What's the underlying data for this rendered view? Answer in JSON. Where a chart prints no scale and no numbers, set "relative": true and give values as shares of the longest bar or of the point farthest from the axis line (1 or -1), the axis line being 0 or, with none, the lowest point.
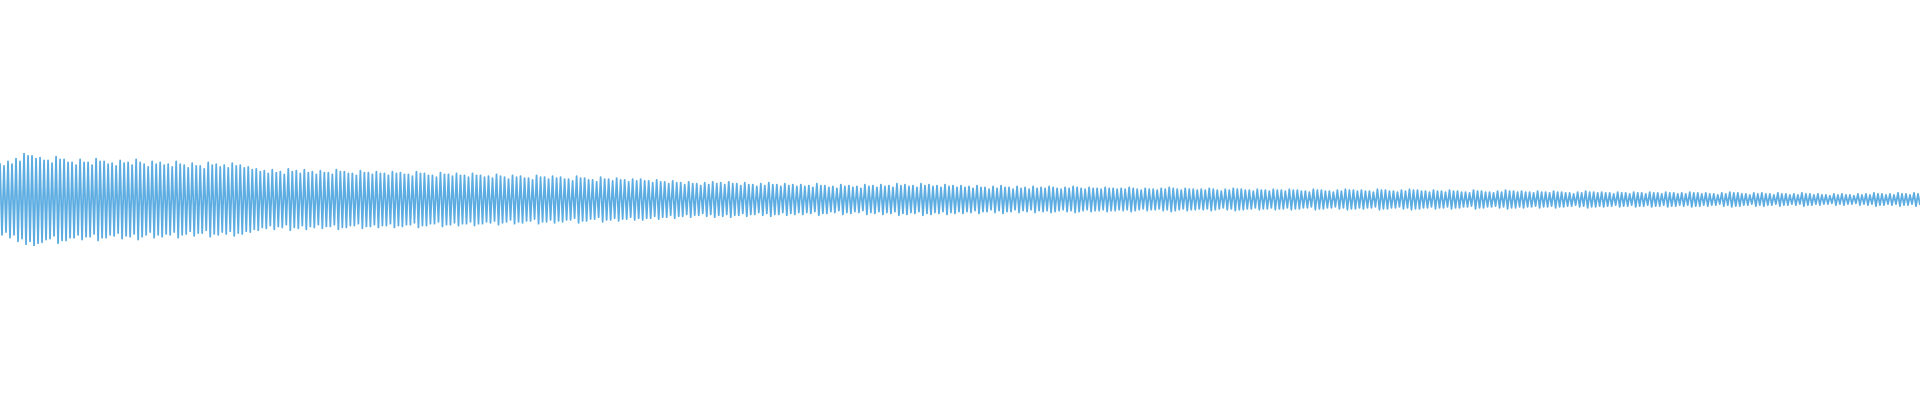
{
  "chart_data": {
    "type": "line",
    "relative": true,
    "marker": "none",
    "color": "#5dade2",
    "categories": [
      null,
      null,
      null,
      null,
      null,
      null,
      null,
      null,
      null,
      null,
      null,
      null,
      null,
      null,
      null,
      null,
      null,
      null,
      null,
      null,
      null,
      null,
      null,
      null,
      null,
      null,
      null,
      null,
      null,
      null,
      null,
      null,
      null,
      null,
      null,
      null,
      null,
      null,
      null,
      null,
      null,
      null,
      null,
      null,
      null,
      null,
      null,
      null,
      null,
      null,
      null,
      null,
      null,
      null,
      null,
      null,
      null,
      null,
      null,
      null,
      null,
      null,
      null,
      null,
      null,
      null,
      null,
      null,
      null,
      null,
      null,
      null,
      null,
      null,
      null,
      null,
      null,
      null,
      null,
      null,
      null,
      null,
      null,
      null,
      null,
      null,
      null,
      null,
      null,
      null,
      null,
      null,
      null,
      null,
      null,
      null,
      null,
      null,
      null,
      null,
      null,
      null,
      null,
      null,
      null,
      null,
      null,
      null,
      null,
      null,
      null,
      null,
      null,
      null,
      null,
      null,
      null,
      null,
      null,
      null,
      null,
      null,
      null,
      null,
      null,
      null,
      null,
      null,
      null,
      null,
      null,
      null,
      null,
      null,
      null,
      null,
      null,
      null,
      null,
      null,
      null,
      null,
      null,
      null,
      null,
      null,
      null,
      null,
      null,
      null,
      null,
      null,
      null,
      null,
      null,
      null,
      null,
      null,
      null,
      null,
      null,
      null,
      null,
      null,
      null,
      null,
      null,
      null,
      null,
      null,
      null,
      null,
      null,
      null,
      null,
      null,
      null,
      null,
      null,
      null,
      null,
      null,
      null,
      null,
      null,
      null,
      null,
      null,
      null,
      null,
      null,
      null,
      null,
      null,
      null,
      null,
      null,
      null,
      null,
      null,
      null,
      null,
      null,
      null,
      null,
      null,
      null,
      null,
      null,
      null,
      null,
      null,
      null,
      null,
      null,
      null,
      null,
      null,
      null,
      null,
      null,
      null,
      null,
      null,
      null,
      null,
      null,
      null,
      null,
      null,
      null,
      null,
      null,
      null,
      null,
      null,
      null,
      null,
      null,
      null,
      null,
      null,
      null,
      null,
      null,
      null,
      null,
      null,
      null,
      null,
      null,
      null,
      null,
      null,
      null,
      null,
      null,
      null,
      null,
      null,
      null,
      null,
      null,
      null,
      null,
      null,
      null,
      null,
      null,
      null,
      null,
      null,
      null,
      null,
      null,
      null,
      null,
      null,
      null,
      null,
      null,
      null,
      null,
      null,
      null,
      null,
      null,
      null,
      null,
      null,
      null,
      null,
      null,
      null,
      null,
      null,
      null,
      null,
      null,
      null,
      null,
      null,
      null,
      null,
      null,
      null,
      null,
      null,
      null,
      null,
      null,
      null,
      null,
      null,
      null,
      null,
      null,
      null,
      null,
      null,
      null,
      null,
      null,
      null,
      null,
      null,
      null,
      null,
      null,
      null,
      null,
      null,
      null,
      null,
      null,
      null,
      null,
      null,
      null,
      null,
      null,
      null,
      null,
      null,
      null,
      null,
      null,
      null,
      null,
      null,
      null,
      null,
      null,
      null,
      null,
      null,
      null,
      null,
      null,
      null,
      null,
      null,
      null,
      null,
      null,
      null,
      null,
      null,
      null,
      null,
      null,
      null,
      null,
      null,
      null,
      null,
      null,
      null,
      null,
      null,
      null,
      null,
      null,
      null,
      null,
      null,
      null,
      null,
      null,
      null,
      null,
      null,
      null,
      null,
      null,
      null,
      null,
      null,
      null,
      null,
      null,
      null,
      null,
      null,
      null,
      null,
      null,
      null,
      null,
      null,
      null,
      null,
      null,
      null,
      null,
      null,
      null,
      null,
      null,
      null,
      null,
      null,
      null,
      null,
      null,
      null,
      null,
      null,
      null,
      null,
      null,
      null,
      null,
      null,
      null,
      null,
      null,
      null,
      null,
      null,
      null,
      null,
      null,
      null,
      null,
      null,
      null,
      null,
      null,
      null,
      null,
      null,
      null,
      null,
      null,
      null,
      null,
      null,
      null,
      null,
      null,
      null,
      null,
      null,
      null,
      null,
      null,
      null,
      null,
      null,
      null,
      null,
      null,
      null,
      null,
      null,
      null,
      null,
      null,
      null,
      null,
      null,
      null,
      null,
      null,
      null,
      null,
      null,
      null,
      null,
      null,
      null,
      null,
      null,
      null,
      null,
      null,
      null,
      null,
      null,
      null,
      null,
      null,
      null,
      null,
      null,
      null,
      null,
      null,
      null,
      null,
      null,
      null,
      null,
      null,
      null,
      null,
      null,
      null,
      null,
      null,
      null,
      null,
      null,
      null,
      null,
      null,
      null,
      null,
      null,
      null,
      null,
      null,
      null,
      null,
      null,
      null,
      null,
      null,
      null,
      null,
      null,
      null,
      null,
      null,
      null,
      null,
      null,
      null,
      null,
      null,
      null,
      null,
      null,
      null,
      null,
      null,
      null,
      null,
      null,
      null,
      null,
      null,
      null,
      null,
      null,
      null,
      null,
      null,
      null,
      null,
      null,
      null,
      null,
      null,
      null,
      null,
      null,
      null,
      null,
      null,
      null,
      null,
      null,
      null,
      null,
      null,
      null,
      null,
      null,
      null,
      null,
      null,
      null,
      null,
      null,
      null,
      null,
      null,
      null,
      null,
      null,
      null,
      null,
      null,
      null,
      null,
      null,
      null,
      null,
      null,
      null,
      null,
      null,
      null,
      null,
      null,
      null,
      null,
      null,
      null,
      null,
      null,
      null,
      null,
      null,
      null,
      null,
      null,
      null,
      null,
      null,
      null,
      null,
      null,
      null,
      null,
      null,
      null,
      null,
      null,
      null,
      null,
      null,
      null,
      null,
      null,
      null,
      null,
      null,
      null,
      null,
      null,
      null,
      null,
      null,
      null,
      null,
      null,
      null,
      null,
      null,
      null,
      null,
      null,
      null,
      null,
      null,
      null,
      null,
      null,
      null,
      null,
      null,
      null,
      null,
      null,
      null,
      null,
      null,
      null,
      null,
      null,
      null,
      null,
      null,
      null,
      null,
      null,
      null,
      null,
      null,
      null,
      null,
      null,
      null,
      null,
      null,
      null,
      null,
      null,
      null,
      null,
      null,
      null,
      null,
      null,
      null,
      null,
      null,
      null,
      null,
      null,
      null,
      null,
      null,
      null,
      null,
      null,
      null,
      null,
      null,
      null,
      null,
      null,
      null,
      null,
      null,
      null,
      null,
      null,
      null,
      null,
      null,
      null,
      null,
      null,
      null,
      null,
      null,
      null,
      null,
      null,
      null,
      null,
      null,
      null,
      null,
      null,
      null,
      null,
      null,
      null,
      null,
      null,
      null,
      null,
      null,
      null,
      null,
      null,
      null,
      null,
      null,
      null,
      null,
      null,
      null,
      null,
      null,
      null,
      null,
      null,
      null,
      null,
      null,
      null,
      null,
      null,
      null,
      null,
      null,
      null,
      null,
      null,
      null,
      null,
      null,
      null,
      null,
      null,
      null,
      null,
      null,
      null,
      null,
      null,
      null,
      null,
      null,
      null,
      null,
      null,
      null,
      null,
      null,
      null,
      null,
      null,
      null,
      null,
      null,
      null,
      null,
      null,
      null,
      null,
      null,
      null,
      null,
      null,
      null,
      null,
      null,
      null,
      null,
      null,
      null,
      null,
      null,
      null,
      null,
      null,
      null,
      null,
      null,
      null,
      null,
      null,
      null,
      null,
      null,
      null,
      null,
      null,
      null,
      null,
      null,
      null,
      null,
      null,
      null,
      null,
      null,
      null,
      null,
      null,
      null,
      null,
      null,
      null,
      null,
      null,
      null,
      null,
      null,
      null,
      null,
      null,
      null,
      null,
      null,
      null,
      null,
      null,
      null,
      null,
      null,
      null,
      null,
      null,
      null,
      null,
      null,
      null,
      null,
      null,
      null,
      null,
      null,
      null,
      null,
      null,
      null,
      null,
      null,
      null,
      null,
      null,
      null,
      null,
      null,
      null,
      null,
      null,
      null,
      null,
      null,
      null,
      null,
      null,
      null,
      null,
      null,
      null,
      null,
      null,
      null,
      null,
      null,
      null,
      null,
      null,
      null,
      null,
      null,
      null,
      null,
      null,
      null,
      null,
      null,
      null,
      null,
      null,
      null,
      null,
      null,
      null,
      null,
      null,
      null,
      null,
      null,
      null,
      null,
      null,
      null,
      null,
      null,
      null,
      null,
      null,
      null,
      null,
      null,
      null,
      null,
      null,
      null
    ],
    "values": [
      0.89,
      0.12,
      0.86,
      0.15,
      0.91,
      0.09,
      0.88,
      0.12,
      0.94,
      0.05,
      0.91,
      0.08,
      1.0,
      0.02,
      0.97,
      0.05,
      0.97,
      0.0,
      0.94,
      0.03,
      0.95,
      0.04,
      0.92,
      0.07,
      0.92,
      0.08,
      0.89,
      0.11,
      0.96,
      0.03,
      0.93,
      0.06,
      0.93,
      0.06,
      0.9,
      0.09,
      0.9,
      0.09,
      0.87,
      0.12,
      0.93,
      0.07,
      0.9,
      0.1,
      0.9,
      0.1,
      0.87,
      0.13,
      0.94,
      0.06,
      0.91,
      0.09,
      0.91,
      0.09,
      0.88,
      0.12,
      0.89,
      0.11,
      0.86,
      0.14,
      0.92,
      0.08,
      0.89,
      0.11,
      0.9,
      0.1,
      0.87,
      0.13,
      0.93,
      0.07,
      0.9,
      0.1,
      0.88,
      0.12,
      0.85,
      0.15,
      0.91,
      0.09,
      0.88,
      0.12,
      0.9,
      0.1,
      0.87,
      0.13,
      0.88,
      0.12,
      0.85,
      0.15,
      0.91,
      0.09,
      0.88,
      0.12,
      0.87,
      0.13,
      0.84,
      0.16,
      0.89,
      0.11,
      0.86,
      0.14,
      0.86,
      0.14,
      0.83,
      0.17,
      0.9,
      0.1,
      0.87,
      0.13,
      0.88,
      0.12,
      0.85,
      0.15,
      0.87,
      0.13,
      0.84,
      0.16,
      0.89,
      0.11,
      0.86,
      0.14,
      0.87,
      0.13,
      0.84,
      0.16,
      0.85,
      0.15,
      0.82,
      0.18,
      0.83,
      0.17,
      0.8,
      0.2,
      0.81,
      0.19,
      0.78,
      0.22,
      0.82,
      0.18,
      0.79,
      0.21,
      0.8,
      0.2,
      0.77,
      0.23,
      0.83,
      0.17,
      0.8,
      0.2,
      0.81,
      0.19,
      0.78,
      0.22,
      0.82,
      0.18,
      0.79,
      0.21,
      0.8,
      0.2,
      0.77,
      0.23,
      0.81,
      0.19,
      0.79,
      0.21,
      0.79,
      0.21,
      0.77,
      0.23,
      0.82,
      0.18,
      0.8,
      0.2,
      0.8,
      0.2,
      0.78,
      0.22,
      0.78,
      0.22,
      0.76,
      0.24,
      0.81,
      0.19,
      0.79,
      0.21,
      0.79,
      0.21,
      0.77,
      0.23,
      0.8,
      0.2,
      0.78,
      0.22,
      0.78,
      0.22,
      0.76,
      0.24,
      0.8,
      0.2,
      0.78,
      0.22,
      0.79,
      0.21,
      0.77,
      0.23,
      0.77,
      0.23,
      0.75,
      0.25,
      0.8,
      0.2,
      0.78,
      0.22,
      0.78,
      0.22,
      0.76,
      0.24,
      0.76,
      0.24,
      0.74,
      0.26,
      0.79,
      0.21,
      0.77,
      0.23,
      0.77,
      0.23,
      0.75,
      0.25,
      0.78,
      0.22,
      0.76,
      0.24,
      0.76,
      0.24,
      0.74,
      0.26,
      0.78,
      0.22,
      0.76,
      0.24,
      0.76,
      0.24,
      0.74,
      0.26,
      0.75,
      0.25,
      0.73,
      0.27,
      0.77,
      0.23,
      0.75,
      0.25,
      0.74,
      0.26,
      0.72,
      0.28,
      0.76,
      0.24,
      0.74,
      0.26,
      0.75,
      0.25,
      0.73,
      0.27,
      0.73,
      0.27,
      0.71,
      0.29,
      0.76,
      0.24,
      0.74,
      0.26,
      0.74,
      0.26,
      0.72,
      0.28,
      0.75,
      0.25,
      0.73,
      0.27,
      0.74,
      0.26,
      0.72,
      0.28,
      0.72,
      0.28,
      0.7,
      0.3,
      0.75,
      0.25,
      0.73,
      0.27,
      0.73,
      0.27,
      0.71,
      0.29,
      0.71,
      0.29,
      0.69,
      0.31,
      0.74,
      0.26,
      0.72,
      0.28,
      0.72,
      0.28,
      0.7,
      0.3,
      0.73,
      0.27,
      0.71,
      0.29,
      0.71,
      0.29,
      0.69,
      0.31,
      0.72,
      0.28,
      0.7,
      0.3,
      0.72,
      0.28,
      0.7,
      0.3,
      0.7,
      0.3,
      0.68,
      0.32,
      0.71,
      0.29,
      0.69,
      0.31,
      0.69,
      0.31,
      0.67,
      0.33,
      0.7,
      0.3,
      0.68,
      0.32,
      0.68,
      0.32,
      0.66,
      0.34,
      0.69,
      0.31,
      0.67,
      0.33,
      0.67,
      0.33,
      0.65,
      0.35,
      0.68,
      0.32,
      0.66,
      0.34,
      0.69,
      0.31,
      0.67,
      0.33,
      0.68,
      0.32,
      0.66,
      0.34,
      0.69,
      0.31,
      0.67,
      0.33,
      0.67,
      0.33,
      0.65,
      0.35,
      0.68,
      0.32,
      0.66,
      0.34,
      0.66,
      0.34,
      0.64,
      0.36,
      0.67,
      0.33,
      0.65,
      0.35,
      0.68,
      0.32,
      0.66,
      0.34,
      0.66,
      0.34,
      0.64,
      0.36,
      0.67,
      0.33,
      0.65,
      0.35,
      0.66,
      0.34,
      0.64,
      0.36,
      0.66,
      0.34,
      0.64,
      0.36,
      0.65,
      0.35,
      0.63,
      0.37,
      0.67,
      0.33,
      0.65,
      0.35,
      0.65,
      0.35,
      0.63,
      0.37,
      0.64,
      0.36,
      0.62,
      0.38,
      0.66,
      0.34,
      0.64,
      0.36,
      0.65,
      0.35,
      0.63,
      0.37,
      0.64,
      0.36,
      0.62,
      0.38,
      0.66,
      0.34,
      0.64,
      0.36,
      0.65,
      0.35,
      0.63,
      0.37,
      0.66,
      0.34,
      0.64,
      0.36,
      0.65,
      0.35,
      0.63,
      0.37,
      0.67,
      0.33,
      0.65,
      0.35,
      0.66,
      0.34,
      0.64,
      0.36,
      0.65,
      0.35,
      0.63,
      0.37,
      0.67,
      0.33,
      0.65,
      0.35,
      0.66,
      0.34,
      0.64,
      0.36,
      0.65,
      0.35,
      0.63,
      0.37,
      0.66,
      0.34,
      0.64,
      0.36,
      0.65,
      0.35,
      0.63,
      0.37,
      0.65,
      0.35,
      0.63,
      0.37,
      0.64,
      0.36,
      0.62,
      0.38,
      0.65,
      0.35,
      0.63,
      0.37,
      0.63,
      0.37,
      0.61,
      0.39,
      0.64,
      0.36,
      0.62,
      0.38,
      0.65,
      0.35,
      0.63,
      0.37,
      0.63,
      0.37,
      0.61,
      0.39,
      0.64,
      0.36,
      0.62,
      0.38,
      0.63,
      0.37,
      0.61,
      0.39,
      0.64,
      0.36,
      0.62,
      0.38,
      0.63,
      0.37,
      0.62,
      0.38,
      0.64,
      0.36,
      0.63,
      0.37,
      0.62,
      0.38,
      0.61,
      0.39,
      0.63,
      0.37,
      0.62,
      0.38,
      0.64,
      0.36,
      0.63,
      0.37,
      0.62,
      0.38,
      0.61,
      0.39,
      0.63,
      0.37,
      0.62,
      0.38,
      0.62,
      0.38,
      0.61,
      0.39,
      0.63,
      0.37,
      0.62,
      0.38,
      0.62,
      0.38,
      0.61,
      0.39,
      0.62,
      0.38,
      0.61,
      0.39,
      0.63,
      0.37,
      0.62,
      0.38,
      0.61,
      0.39,
      0.6,
      0.4,
      0.62,
      0.38,
      0.61,
      0.39,
      0.61,
      0.39,
      0.6,
      0.4,
      0.62,
      0.38,
      0.61,
      0.39,
      0.63,
      0.37,
      0.62,
      0.38,
      0.61,
      0.39,
      0.6,
      0.4,
      0.62,
      0.38,
      0.61,
      0.39,
      0.61,
      0.39,
      0.6,
      0.4,
      0.61,
      0.39,
      0.6,
      0.4,
      0.62,
      0.38,
      0.61,
      0.39,
      0.6,
      0.4,
      0.59,
      0.41,
      0.61,
      0.39,
      0.6,
      0.4,
      0.62,
      0.38,
      0.61,
      0.39,
      0.61,
      0.39,
      0.6,
      0.4,
      0.6,
      0.4,
      0.59,
      0.41,
      0.61,
      0.39,
      0.6,
      0.4,
      0.6,
      0.4,
      0.59,
      0.41,
      0.61,
      0.39,
      0.6,
      0.4,
      0.6,
      0.4,
      0.59,
      0.41,
      0.61,
      0.39,
      0.6,
      0.4,
      0.6,
      0.4,
      0.59,
      0.41,
      0.59,
      0.41,
      0.58,
      0.42,
      0.61,
      0.39,
      0.6,
      0.4,
      0.6,
      0.4,
      0.59,
      0.41,
      0.59,
      0.41,
      0.58,
      0.42,
      0.6,
      0.4,
      0.59,
      0.41,
      0.61,
      0.39,
      0.6,
      0.4,
      0.6,
      0.4,
      0.59,
      0.41,
      0.6,
      0.4,
      0.59,
      0.41,
      0.59,
      0.41,
      0.58,
      0.42,
      0.61,
      0.39,
      0.6,
      0.4,
      0.6,
      0.4,
      0.59,
      0.41,
      0.59,
      0.41,
      0.58,
      0.42,
      0.6,
      0.4,
      0.59,
      0.41,
      0.61,
      0.39,
      0.6,
      0.4,
      0.6,
      0.4,
      0.59,
      0.41,
      0.59,
      0.41,
      0.58,
      0.42,
      0.6,
      0.4,
      0.59,
      0.41,
      0.59,
      0.41,
      0.58,
      0.42,
      0.6,
      0.4,
      0.59,
      0.41,
      0.59,
      0.41,
      0.58,
      0.42,
      0.58,
      0.42,
      0.57,
      0.43,
      0.6,
      0.4,
      0.59,
      0.41,
      0.59,
      0.41,
      0.58,
      0.42,
      0.58,
      0.42,
      0.57,
      0.43,
      0.59,
      0.41,
      0.58,
      0.42,
      0.6,
      0.4,
      0.59,
      0.41,
      0.59,
      0.41,
      0.58,
      0.42,
      0.59,
      0.41,
      0.58,
      0.42,
      0.58,
      0.42,
      0.57,
      0.43,
      0.59,
      0.41,
      0.58,
      0.42,
      0.58,
      0.42,
      0.57,
      0.43,
      0.59,
      0.41,
      0.58,
      0.42,
      0.58,
      0.42,
      0.57,
      0.43,
      0.57,
      0.43,
      0.56,
      0.44,
      0.58,
      0.42,
      0.57,
      0.43,
      0.59,
      0.41,
      0.58,
      0.42,
      0.58,
      0.42,
      0.57,
      0.43,
      0.58,
      0.42,
      0.57,
      0.43,
      0.57,
      0.43,
      0.56,
      0.44,
      0.58,
      0.42,
      0.57,
      0.43,
      0.57,
      0.43,
      0.56,
      0.44,
      0.58,
      0.42,
      0.57,
      0.43,
      0.57,
      0.43,
      0.56,
      0.44,
      0.58,
      0.42,
      0.57,
      0.43,
      0.57,
      0.43,
      0.56,
      0.44,
      0.58,
      0.42,
      0.57,
      0.43,
      0.57,
      0.43,
      0.56,
      0.44,
      0.57,
      0.43,
      0.56,
      0.44,
      0.58,
      0.42,
      0.57,
      0.43,
      0.57,
      0.43,
      0.56,
      0.44,
      0.57,
      0.43,
      0.56,
      0.44,
      0.56,
      0.44,
      0.55,
      0.45,
      0.57,
      0.43,
      0.56,
      0.44,
      0.58,
      0.42,
      0.57,
      0.43,
      0.57,
      0.43,
      0.56,
      0.44,
      0.56,
      0.44,
      0.55,
      0.45,
      0.57,
      0.43,
      0.56,
      0.44,
      0.57,
      0.43,
      0.56,
      0.44,
      0.56,
      0.44,
      0.55,
      0.45,
      0.57,
      0.43,
      0.56,
      0.44,
      0.56,
      0.44,
      0.55,
      0.45,
      0.56,
      0.44,
      0.55,
      0.45,
      0.57,
      0.43,
      0.56,
      0.44,
      0.56,
      0.44,
      0.55,
      0.45,
      0.56,
      0.44,
      0.55,
      0.45,
      0.55,
      0.45,
      0.54,
      0.46,
      0.56,
      0.44,
      0.55,
      0.45,
      0.56,
      0.44,
      0.55,
      0.45,
      0.55,
      0.45,
      0.54,
      0.46,
      0.56,
      0.44,
      0.55,
      0.45,
      0.56,
      0.44,
      0.55,
      0.45,
      0.57,
      0.43,
      0.56,
      0.44,
      0.56,
      0.44,
      0.55,
      0.45,
      0.56,
      0.44,
      0.55,
      0.45,
      0.57,
      0.43,
      0.56,
      0.44,
      0.56,
      0.44,
      0.55,
      0.45,
      0.57,
      0.43,
      0.56,
      0.44
    ]
  }
}
